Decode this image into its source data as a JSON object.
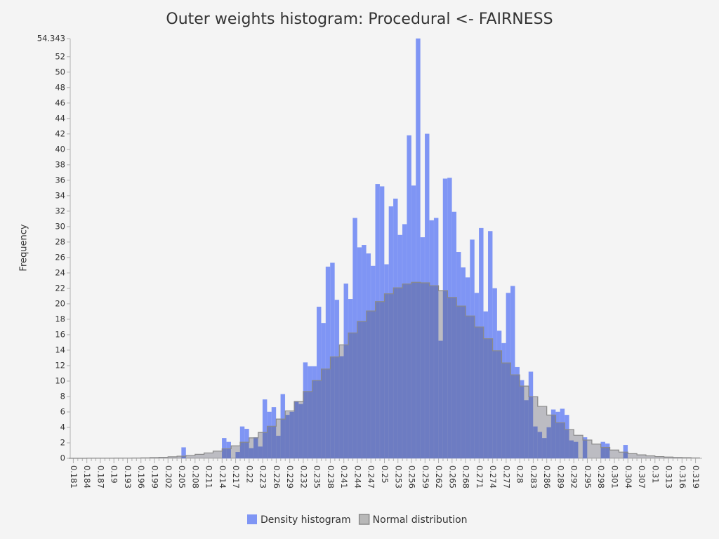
{
  "chart_data": {
    "type": "histogram",
    "title": "Outer weights histogram: Procedural <- FAIRNESS",
    "y_label": "Frequency",
    "legend": "bottom",
    "xlim": [
      0.18,
      0.32
    ],
    "ylim": [
      0,
      54.343
    ],
    "yticks": [
      0,
      2,
      4,
      6,
      8,
      10,
      12,
      14,
      16,
      18,
      20,
      22,
      24,
      26,
      28,
      30,
      32,
      34,
      36,
      38,
      40,
      42,
      44,
      46,
      48,
      50,
      52,
      54.343
    ],
    "xticks": [
      0.181,
      0.184,
      0.187,
      0.19,
      0.193,
      0.196,
      0.199,
      0.202,
      0.205,
      0.208,
      0.211,
      0.214,
      0.217,
      0.22,
      0.223,
      0.226,
      0.229,
      0.232,
      0.235,
      0.238,
      0.241,
      0.244,
      0.247,
      0.25,
      0.253,
      0.256,
      0.259,
      0.262,
      0.265,
      0.268,
      0.271,
      0.274,
      0.277,
      0.28,
      0.283,
      0.286,
      0.289,
      0.292,
      0.295,
      0.298,
      0.301,
      0.304,
      0.307,
      0.31,
      0.313,
      0.316,
      0.319
    ],
    "bins": [
      0.205,
      0.206,
      0.207,
      0.208,
      0.209,
      0.21,
      0.211,
      0.212,
      0.213,
      0.214,
      0.215,
      0.216,
      0.217,
      0.218,
      0.219,
      0.22,
      0.221,
      0.222,
      0.223,
      0.224,
      0.225,
      0.226,
      0.227,
      0.228,
      0.229,
      0.23,
      0.231,
      0.232,
      0.233,
      0.234,
      0.235,
      0.236,
      0.237,
      0.238,
      0.239,
      0.24,
      0.241,
      0.242,
      0.243,
      0.244,
      0.245,
      0.246,
      0.247,
      0.248,
      0.249,
      0.25,
      0.251,
      0.252,
      0.253,
      0.254,
      0.255,
      0.256,
      0.257,
      0.258,
      0.259,
      0.26,
      0.261,
      0.262,
      0.263,
      0.264,
      0.265,
      0.266,
      0.267,
      0.268,
      0.269,
      0.27,
      0.271,
      0.272,
      0.273,
      0.274,
      0.275,
      0.276,
      0.277,
      0.278,
      0.279,
      0.28,
      0.281,
      0.282,
      0.283,
      0.284,
      0.285,
      0.286,
      0.287,
      0.288,
      0.289,
      0.29,
      0.291,
      0.292,
      0.293,
      0.294,
      0.295,
      0.296,
      0.297,
      0.298,
      0.299,
      0.3,
      0.301,
      0.302,
      0.303,
      0.304,
      0.305
    ],
    "series": [
      {
        "name": "Density histogram",
        "color": "#7f95f4",
        "values": [
          1.4,
          0,
          0,
          0,
          0,
          0,
          0,
          0,
          0,
          2.6,
          2.1,
          0,
          0.8,
          4.1,
          3.8,
          1.3,
          2.7,
          1.5,
          7.6,
          6.0,
          6.6,
          2.9,
          8.3,
          5.6,
          6.0,
          7.4,
          7.0,
          12.4,
          11.9,
          11.9,
          19.6,
          17.5,
          24.8,
          25.3,
          20.5,
          13.2,
          22.6,
          20.6,
          31.1,
          27.3,
          27.6,
          26.5,
          24.9,
          35.5,
          35.2,
          25.1,
          32.6,
          33.6,
          28.9,
          30.3,
          41.8,
          35.3,
          54.343,
          28.6,
          42.0,
          30.8,
          31.1,
          15.2,
          36.2,
          36.3,
          31.9,
          26.7,
          24.7,
          23.4,
          28.3,
          21.4,
          29.8,
          19.0,
          29.4,
          22.0,
          16.5,
          14.9,
          21.4,
          22.3,
          11.8,
          10.1,
          7.5,
          11.2,
          4.1,
          3.4,
          2.6,
          4.0,
          6.3,
          6.0,
          6.4,
          5.6,
          2.3,
          2.1,
          0,
          2.7,
          0,
          0,
          0,
          2.1,
          1.9,
          0,
          0,
          0,
          1.7,
          0
        ]
      },
      {
        "name": "Normal distribution",
        "color": "#8a8a8a",
        "x": [
          0.181,
          0.183,
          0.185,
          0.187,
          0.189,
          0.191,
          0.193,
          0.195,
          0.197,
          0.199,
          0.201,
          0.203,
          0.205,
          0.207,
          0.209,
          0.211,
          0.213,
          0.215,
          0.217,
          0.219,
          0.221,
          0.223,
          0.225,
          0.227,
          0.229,
          0.231,
          0.233,
          0.235,
          0.237,
          0.239,
          0.241,
          0.243,
          0.245,
          0.247,
          0.249,
          0.251,
          0.253,
          0.255,
          0.257,
          0.259,
          0.261,
          0.263,
          0.265,
          0.267,
          0.269,
          0.271,
          0.273,
          0.275,
          0.277,
          0.279,
          0.281,
          0.283,
          0.285,
          0.287,
          0.289,
          0.291,
          0.293,
          0.295,
          0.297,
          0.299,
          0.301,
          0.303,
          0.305,
          0.307,
          0.309,
          0.311,
          0.313,
          0.315,
          0.317,
          0.319
        ],
        "values": [
          0.0,
          0.0,
          0.01,
          0.01,
          0.01,
          0.02,
          0.03,
          0.04,
          0.06,
          0.09,
          0.13,
          0.19,
          0.27,
          0.37,
          0.51,
          0.7,
          0.93,
          1.24,
          1.62,
          2.08,
          2.65,
          3.34,
          4.15,
          5.08,
          6.14,
          7.34,
          8.65,
          10.07,
          11.56,
          13.13,
          14.69,
          16.24,
          17.72,
          19.08,
          20.29,
          21.3,
          22.07,
          22.57,
          22.79,
          22.72,
          22.35,
          21.71,
          20.82,
          19.71,
          18.43,
          17.0,
          15.48,
          13.92,
          12.35,
          10.81,
          9.35,
          7.98,
          6.72,
          5.6,
          4.6,
          3.73,
          2.98,
          2.36,
          1.84,
          1.41,
          1.07,
          0.8,
          0.6,
          0.44,
          0.32,
          0.22,
          0.16,
          0.11,
          0.08,
          0.05
        ]
      }
    ]
  }
}
